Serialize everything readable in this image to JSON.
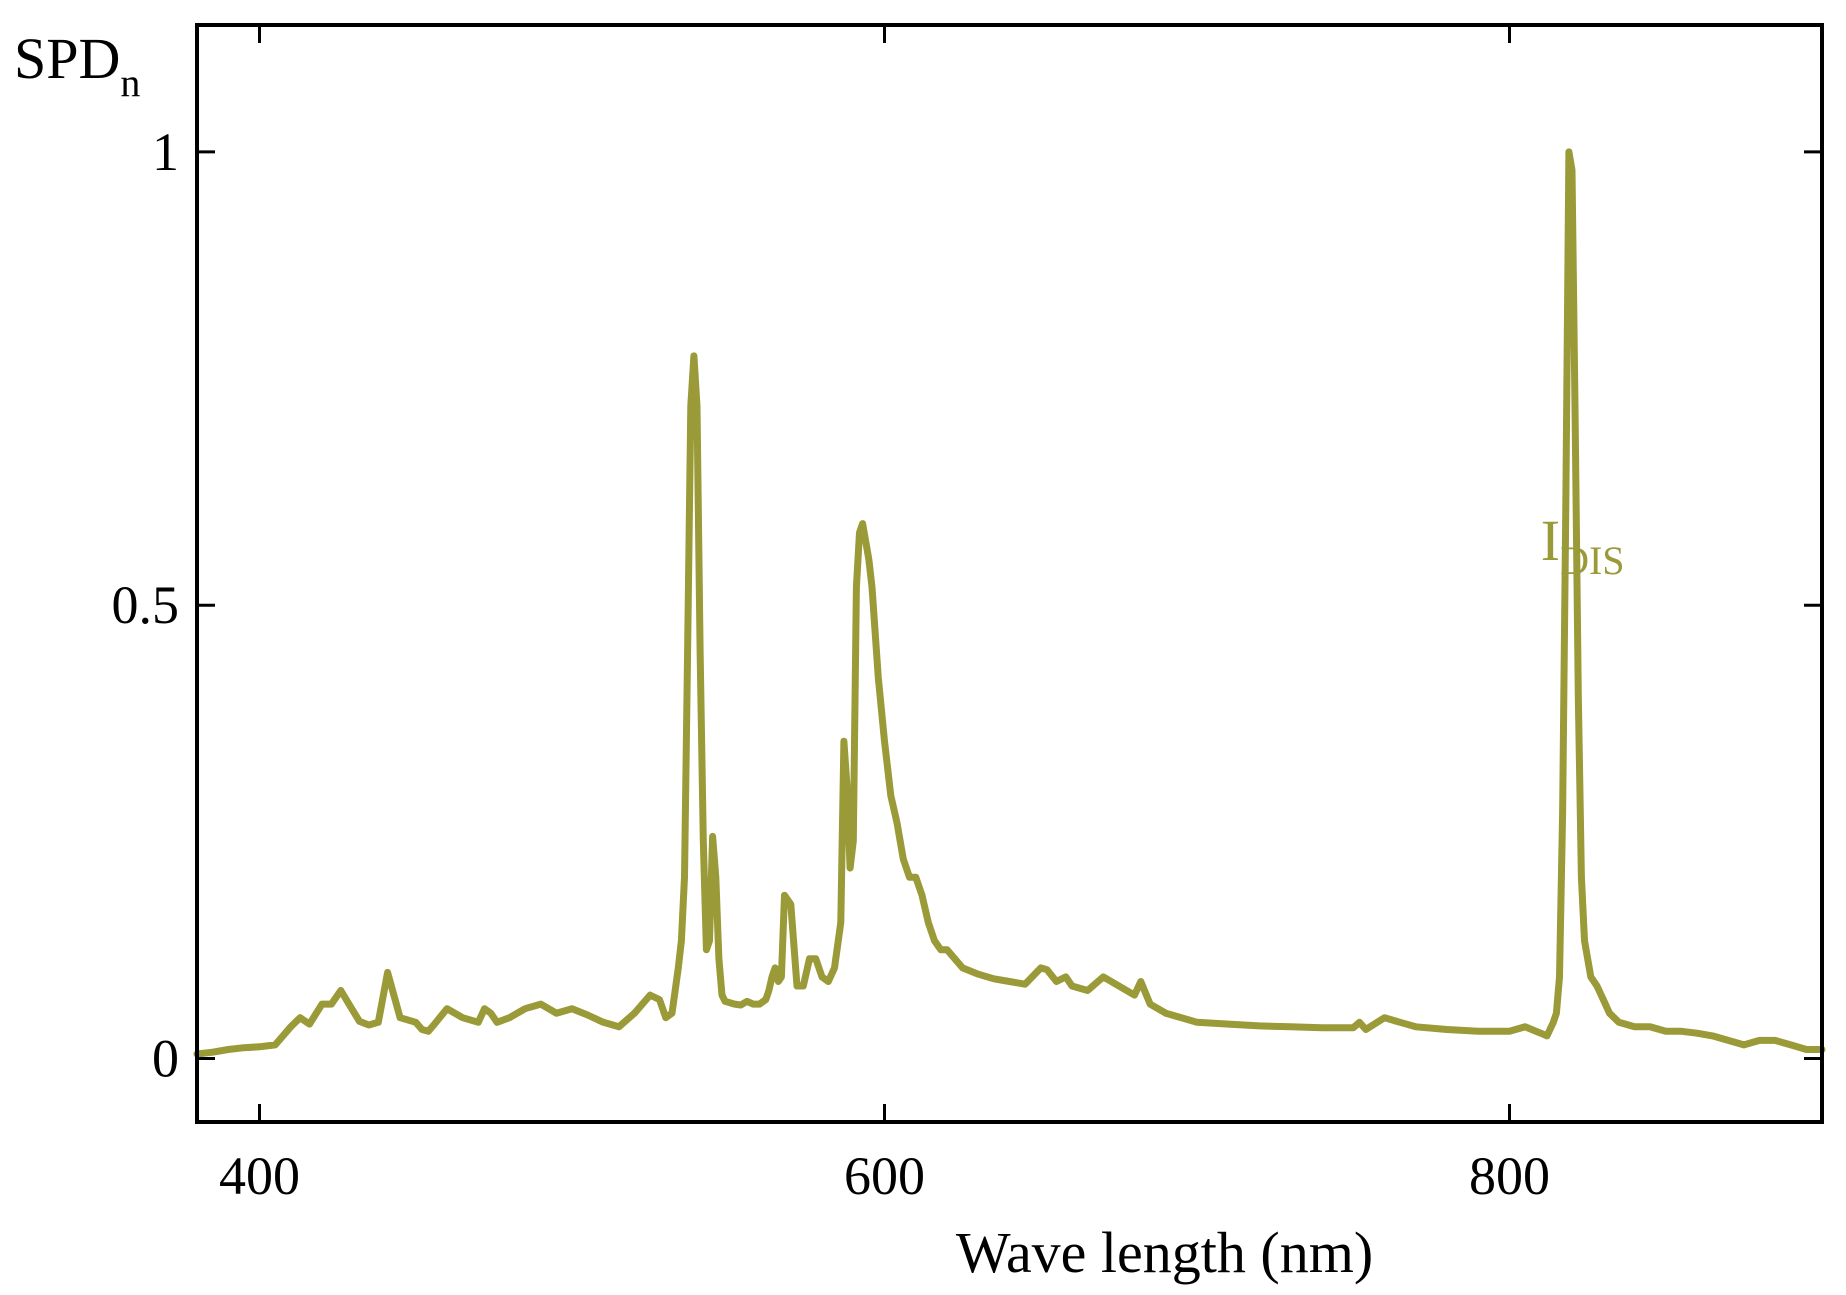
{
  "chart_data": {
    "type": "line",
    "title": "",
    "xlabel": "Wave length (nm)",
    "ylabel": "SPD",
    "ylabel_subscript": "n",
    "xlim": [
      380,
      900
    ],
    "ylim": [
      -0.07,
      1.14
    ],
    "xticks": [
      400,
      600,
      800
    ],
    "xtick_labels": [
      "400",
      "600",
      "800"
    ],
    "yticks": [
      0,
      0.5,
      1
    ],
    "ytick_labels": [
      "0",
      "0.5",
      "1"
    ],
    "grid": false,
    "legend": "none",
    "colors": {
      "series": "#9a9a38",
      "axis": "#000000"
    },
    "series": [
      {
        "name": "I",
        "name_subscript": "DIS",
        "annotation_position": [
          810,
          0.55
        ],
        "x": [
          380,
          385,
          390,
          395,
          400,
          405,
          410,
          413,
          416,
          420,
          423,
          426,
          429,
          432,
          435,
          438,
          441,
          445,
          450,
          452,
          454,
          456,
          460,
          465,
          470,
          472,
          474,
          476,
          480,
          485,
          490,
          495,
          500,
          505,
          510,
          515,
          520,
          525,
          528,
          530,
          532,
          534,
          535,
          536,
          537,
          538,
          539,
          540,
          541,
          542,
          543,
          544,
          545,
          546,
          547,
          548,
          549,
          550,
          552,
          554,
          556,
          558,
          560,
          562,
          563,
          564,
          565,
          566,
          567,
          568,
          570,
          572,
          574,
          576,
          578,
          580,
          582,
          584,
          586,
          587,
          588,
          589,
          590,
          591,
          592,
          593,
          594,
          595,
          596,
          598,
          600,
          602,
          604,
          606,
          608,
          610,
          612,
          614,
          616,
          618,
          620,
          625,
          630,
          635,
          640,
          645,
          650,
          652,
          655,
          658,
          660,
          665,
          670,
          675,
          680,
          682,
          685,
          690,
          695,
          700,
          710,
          720,
          730,
          740,
          750,
          752,
          754,
          760,
          765,
          770,
          780,
          790,
          800,
          805,
          810,
          812,
          814,
          815,
          816,
          817,
          818,
          819,
          820,
          821,
          822,
          823,
          824,
          826,
          828,
          830,
          832,
          835,
          840,
          845,
          850,
          855,
          860,
          865,
          870,
          875,
          880,
          885,
          890,
          895,
          900
        ],
        "y": [
          0.005,
          0.007,
          0.01,
          0.012,
          0.013,
          0.015,
          0.035,
          0.045,
          0.038,
          0.06,
          0.06,
          0.075,
          0.058,
          0.041,
          0.037,
          0.04,
          0.095,
          0.045,
          0.04,
          0.032,
          0.03,
          0.038,
          0.055,
          0.045,
          0.04,
          0.055,
          0.05,
          0.04,
          0.045,
          0.055,
          0.06,
          0.05,
          0.055,
          0.048,
          0.04,
          0.035,
          0.05,
          0.07,
          0.065,
          0.045,
          0.05,
          0.1,
          0.13,
          0.2,
          0.45,
          0.72,
          0.775,
          0.72,
          0.45,
          0.24,
          0.12,
          0.13,
          0.245,
          0.2,
          0.11,
          0.07,
          0.063,
          0.062,
          0.06,
          0.059,
          0.063,
          0.06,
          0.06,
          0.065,
          0.075,
          0.09,
          0.1,
          0.085,
          0.09,
          0.18,
          0.17,
          0.08,
          0.08,
          0.11,
          0.11,
          0.09,
          0.085,
          0.1,
          0.15,
          0.35,
          0.3,
          0.21,
          0.24,
          0.52,
          0.58,
          0.59,
          0.57,
          0.55,
          0.52,
          0.42,
          0.35,
          0.29,
          0.26,
          0.22,
          0.2,
          0.2,
          0.18,
          0.15,
          0.13,
          0.12,
          0.12,
          0.1,
          0.093,
          0.088,
          0.085,
          0.082,
          0.1,
          0.098,
          0.085,
          0.09,
          0.08,
          0.075,
          0.09,
          0.08,
          0.07,
          0.085,
          0.06,
          0.05,
          0.045,
          0.04,
          0.038,
          0.036,
          0.035,
          0.034,
          0.034,
          0.04,
          0.032,
          0.045,
          0.04,
          0.035,
          0.032,
          0.03,
          0.03,
          0.035,
          0.028,
          0.025,
          0.04,
          0.05,
          0.09,
          0.27,
          0.61,
          1.0,
          0.98,
          0.71,
          0.4,
          0.2,
          0.13,
          0.09,
          0.08,
          0.065,
          0.05,
          0.04,
          0.035,
          0.035,
          0.03,
          0.03,
          0.028,
          0.025,
          0.02,
          0.015,
          0.02,
          0.02,
          0.015,
          0.01,
          0.01
        ]
      }
    ]
  }
}
